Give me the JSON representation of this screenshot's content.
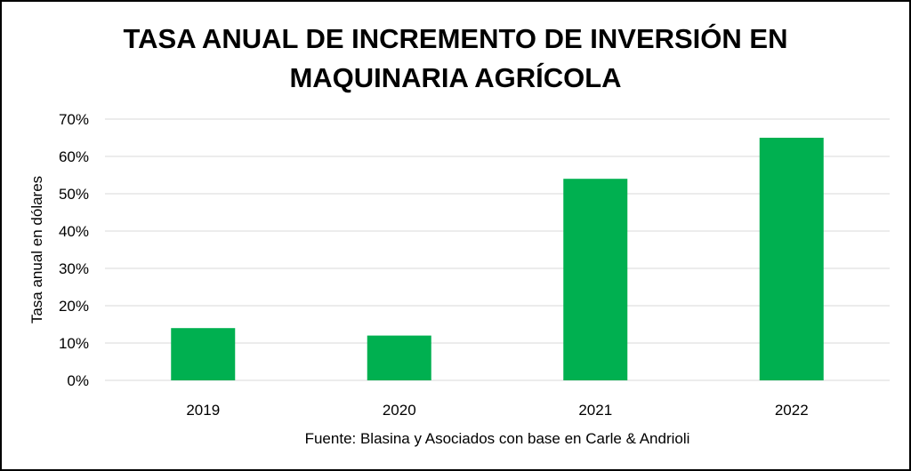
{
  "chart_data": {
    "type": "bar",
    "title_lines": [
      "TASA ANUAL DE INCREMENTO DE INVERSIÓN EN",
      "MAQUINARIA AGRÍCOLA"
    ],
    "categories": [
      "2019",
      "2020",
      "2021",
      "2022"
    ],
    "values": [
      14,
      12,
      54,
      65
    ],
    "ylabel": "Tasa anual en dólares",
    "yticks": [
      "0%",
      "10%",
      "20%",
      "30%",
      "40%",
      "50%",
      "60%",
      "70%"
    ],
    "ylim": [
      0,
      70
    ],
    "ytick_step": 10,
    "grid": true,
    "legend": "none",
    "source": "Fuente: Blasina y Asociados con base en Carle & Andrioli",
    "bar_color": "#00b050",
    "grid_color": "#d9d9d9"
  }
}
